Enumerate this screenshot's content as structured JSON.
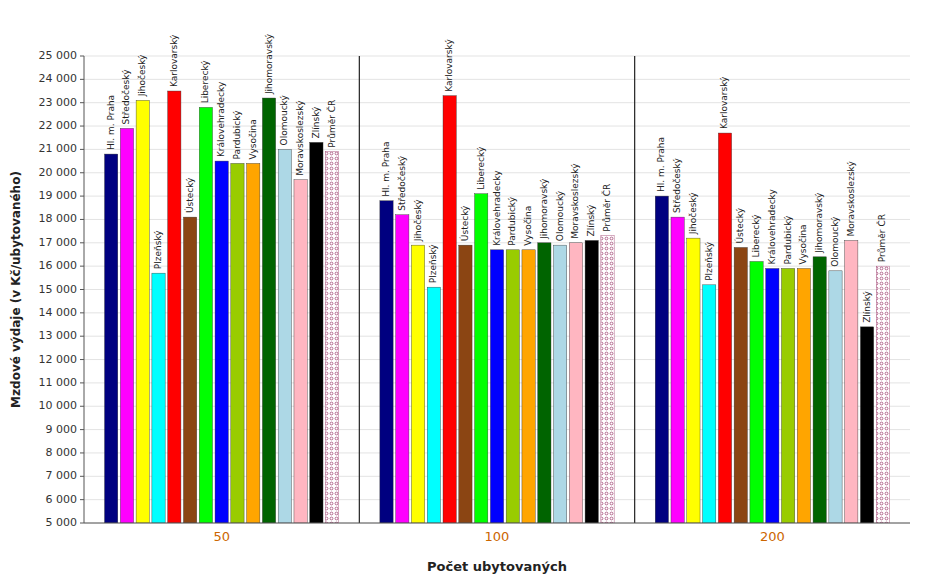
{
  "chart_data": {
    "type": "bar",
    "xlabel": "Počet ubytovaných",
    "ylabel": "Mzdové výdaje (v Kč/ubytovaného)",
    "categories": [
      "50",
      "100",
      "200"
    ],
    "series": [
      {
        "name": "Hl. m. Praha",
        "color": "#000080",
        "values": [
          20800,
          18800,
          19000
        ]
      },
      {
        "name": "Středočeský",
        "color": "#FF00FF",
        "values": [
          21900,
          18200,
          18100
        ]
      },
      {
        "name": "Jihočeský",
        "color": "#FFFF00",
        "values": [
          23100,
          16900,
          17200
        ]
      },
      {
        "name": "Plzeňský",
        "color": "#00FFFF",
        "values": [
          15700,
          15100,
          15200
        ]
      },
      {
        "name": "Karlovarský",
        "color": "#FF0000",
        "values": [
          23500,
          23300,
          21700
        ]
      },
      {
        "name": "Ústecký",
        "color": "#8B4513",
        "values": [
          18100,
          16900,
          16800
        ]
      },
      {
        "name": "Liberecký",
        "color": "#00FF00",
        "values": [
          22800,
          19100,
          16200
        ]
      },
      {
        "name": "Královehradecky",
        "color": "#0000FF",
        "values": [
          20500,
          16700,
          15900
        ]
      },
      {
        "name": "Pardubický",
        "color": "#99CC00",
        "values": [
          20400,
          16700,
          15900
        ]
      },
      {
        "name": "Vysočina",
        "color": "#FFA500",
        "values": [
          20400,
          16700,
          15900
        ]
      },
      {
        "name": "Jihomoravský",
        "color": "#006400",
        "values": [
          23200,
          17000,
          16400
        ]
      },
      {
        "name": "Olomoucký",
        "color": "#ADD8E6",
        "values": [
          21000,
          16900,
          15800
        ]
      },
      {
        "name": "Moravskoslezský",
        "color": "#FFB6C1",
        "values": [
          19700,
          17000,
          17100
        ]
      },
      {
        "name": "Zlínský",
        "color": "#000000",
        "values": [
          21300,
          17100,
          13400
        ]
      },
      {
        "name": "Průměr ČR",
        "color": "#993366",
        "values": [
          20900,
          17300,
          16000
        ]
      }
    ],
    "ylim": [
      5000,
      25000
    ],
    "yticks": [
      {
        "value": 5000,
        "label": "5 000"
      },
      {
        "value": 6000,
        "label": "6 000"
      },
      {
        "value": 7000,
        "label": "7 000"
      },
      {
        "value": 8000,
        "label": "8 000"
      },
      {
        "value": 9000,
        "label": "9 000"
      },
      {
        "value": 10000,
        "label": "10 000"
      },
      {
        "value": 11000,
        "label": "11 000"
      },
      {
        "value": 12000,
        "label": "12 000"
      },
      {
        "value": 13000,
        "label": "13 000"
      },
      {
        "value": 14000,
        "label": "14 000"
      },
      {
        "value": 15000,
        "label": "15 000"
      },
      {
        "value": 16000,
        "label": "16 000"
      },
      {
        "value": 17000,
        "label": "17 000"
      },
      {
        "value": 18000,
        "label": "18 000"
      },
      {
        "value": 19000,
        "label": "19 000"
      },
      {
        "value": 20000,
        "label": "20 000"
      },
      {
        "value": 21000,
        "label": "21 000"
      },
      {
        "value": 22000,
        "label": "22 000"
      },
      {
        "value": 23000,
        "label": "23 000"
      },
      {
        "value": 24000,
        "label": "24 000"
      },
      {
        "value": 25000,
        "label": "25 000"
      }
    ],
    "grid": true
  }
}
